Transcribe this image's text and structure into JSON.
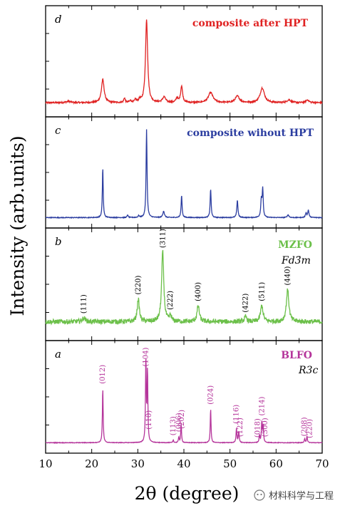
{
  "chart_data": {
    "type": "line",
    "xlabel": "2θ (degree)",
    "ylabel": "Intensity (arb.units)",
    "xlim": [
      10,
      70
    ],
    "x_ticks": [
      "10",
      "20",
      "30",
      "40",
      "50",
      "60",
      "70"
    ],
    "grid": false,
    "panels": [
      {
        "letter": "d",
        "name": "composite after HPT",
        "color": "#e02222",
        "ylim": [
          0,
          1.0
        ],
        "peaks": [
          {
            "x": 15.0,
            "h": 0.015,
            "w": 1.2
          },
          {
            "x": 22.4,
            "h": 0.25,
            "w": 0.7
          },
          {
            "x": 27.1,
            "h": 0.05,
            "w": 0.35
          },
          {
            "x": 28.4,
            "h": 0.02,
            "w": 0.4
          },
          {
            "x": 29.5,
            "h": 0.03,
            "w": 0.4
          },
          {
            "x": 30.4,
            "h": 0.03,
            "w": 0.4
          },
          {
            "x": 31.9,
            "h": 0.9,
            "w": 0.55
          },
          {
            "x": 35.7,
            "h": 0.06,
            "w": 0.8
          },
          {
            "x": 38.5,
            "h": 0.05,
            "w": 0.5
          },
          {
            "x": 39.5,
            "h": 0.18,
            "w": 0.5
          },
          {
            "x": 45.8,
            "h": 0.11,
            "w": 1.2
          },
          {
            "x": 51.6,
            "h": 0.07,
            "w": 1.1
          },
          {
            "x": 57.0,
            "h": 0.16,
            "w": 1.1
          },
          {
            "x": 62.8,
            "h": 0.03,
            "w": 1.0
          },
          {
            "x": 66.8,
            "h": 0.03,
            "w": 0.8
          }
        ],
        "baseline": 0.06,
        "noise": 0.008
      },
      {
        "letter": "c",
        "name": "composite wihout HPT",
        "color": "#2b3da0",
        "ylim": [
          0,
          1.0
        ],
        "peaks": [
          {
            "x": 22.4,
            "h": 0.54,
            "w": 0.22
          },
          {
            "x": 27.8,
            "h": 0.03,
            "w": 0.25
          },
          {
            "x": 30.2,
            "h": 0.02,
            "w": 0.3
          },
          {
            "x": 31.9,
            "h": 0.95,
            "w": 0.25
          },
          {
            "x": 35.6,
            "h": 0.07,
            "w": 0.4
          },
          {
            "x": 39.5,
            "h": 0.24,
            "w": 0.25
          },
          {
            "x": 45.8,
            "h": 0.31,
            "w": 0.25
          },
          {
            "x": 51.6,
            "h": 0.19,
            "w": 0.28
          },
          {
            "x": 56.8,
            "h": 0.19,
            "w": 0.3
          },
          {
            "x": 57.1,
            "h": 0.3,
            "w": 0.25
          },
          {
            "x": 62.6,
            "h": 0.03,
            "w": 0.4
          },
          {
            "x": 66.5,
            "h": 0.05,
            "w": 0.3
          },
          {
            "x": 67.0,
            "h": 0.08,
            "w": 0.3
          }
        ],
        "baseline": 0.02,
        "noise": 0.004
      },
      {
        "letter": "b",
        "name": "MZFO",
        "phase": "Fd3̄m",
        "color": "#6cc04a",
        "ylim": [
          0,
          1.0
        ],
        "peaks": [
          {
            "x": 18.3,
            "h": 0.04,
            "w": 0.8
          },
          {
            "x": 30.1,
            "h": 0.24,
            "w": 0.55
          },
          {
            "x": 35.4,
            "h": 0.75,
            "w": 0.55
          },
          {
            "x": 37.1,
            "h": 0.06,
            "w": 0.5
          },
          {
            "x": 43.1,
            "h": 0.17,
            "w": 0.6
          },
          {
            "x": 53.4,
            "h": 0.05,
            "w": 0.6
          },
          {
            "x": 56.9,
            "h": 0.17,
            "w": 0.65
          },
          {
            "x": 62.5,
            "h": 0.34,
            "w": 0.65
          }
        ],
        "baseline": 0.11,
        "noise": 0.025,
        "annotations": [
          {
            "x": 18.3,
            "label": "(111)"
          },
          {
            "x": 30.1,
            "label": "(220)"
          },
          {
            "x": 35.4,
            "label": "(311)"
          },
          {
            "x": 37.1,
            "label": "(222)"
          },
          {
            "x": 43.1,
            "label": "(400)"
          },
          {
            "x": 53.4,
            "label": "(422)"
          },
          {
            "x": 56.9,
            "label": "(511)"
          },
          {
            "x": 62.5,
            "label": "(440)"
          }
        ]
      },
      {
        "letter": "a",
        "name": "BLFO",
        "phase": "R3c",
        "color": "#b5359b",
        "ylim": [
          0,
          1.0
        ],
        "peaks": [
          {
            "x": 22.4,
            "h": 0.58,
            "w": 0.2
          },
          {
            "x": 31.75,
            "h": 0.9,
            "w": 0.2
          },
          {
            "x": 32.1,
            "h": 0.75,
            "w": 0.2
          },
          {
            "x": 37.7,
            "h": 0.03,
            "w": 0.2
          },
          {
            "x": 38.9,
            "h": 0.06,
            "w": 0.2
          },
          {
            "x": 39.4,
            "h": 0.2,
            "w": 0.2
          },
          {
            "x": 45.8,
            "h": 0.36,
            "w": 0.2
          },
          {
            "x": 51.4,
            "h": 0.15,
            "w": 0.22
          },
          {
            "x": 51.9,
            "h": 0.12,
            "w": 0.22
          },
          {
            "x": 56.4,
            "h": 0.08,
            "w": 0.2
          },
          {
            "x": 56.9,
            "h": 0.22,
            "w": 0.22
          },
          {
            "x": 57.2,
            "h": 0.18,
            "w": 0.2
          },
          {
            "x": 66.2,
            "h": 0.04,
            "w": 0.2
          },
          {
            "x": 66.7,
            "h": 0.07,
            "w": 0.22
          }
        ],
        "baseline": 0.02,
        "noise": 0.003,
        "annotations": [
          {
            "x": 22.4,
            "label": "(012)"
          },
          {
            "x": 31.7,
            "label": "(104)"
          },
          {
            "x": 32.4,
            "label": "(110)"
          },
          {
            "x": 37.7,
            "label": "(113)"
          },
          {
            "x": 38.9,
            "label": "(006)"
          },
          {
            "x": 39.5,
            "label": "(202)"
          },
          {
            "x": 45.8,
            "label": "(024)"
          },
          {
            "x": 51.4,
            "label": "(116)"
          },
          {
            "x": 52.2,
            "label": "(122)"
          },
          {
            "x": 56.0,
            "label": "(018)"
          },
          {
            "x": 56.9,
            "label": "(214)"
          },
          {
            "x": 57.6,
            "label": "(300)"
          },
          {
            "x": 66.1,
            "label": "(208)"
          },
          {
            "x": 67.3,
            "label": "(220)"
          }
        ]
      }
    ]
  },
  "watermark": {
    "text": "材料科学与工程",
    "icon": "wechat-icon"
  }
}
